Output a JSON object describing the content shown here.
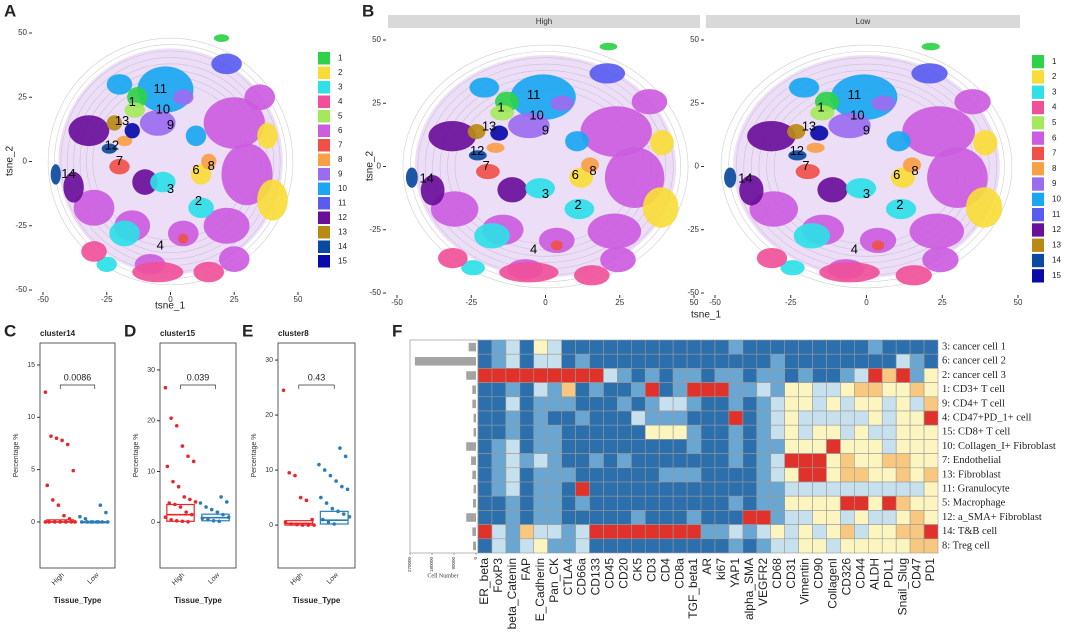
{
  "panels": [
    "A",
    "B",
    "C",
    "D",
    "E",
    "F"
  ],
  "tsne": {
    "xlabel": "tsne_1",
    "ylabel": "tsne_2",
    "xlim": [
      -50,
      50
    ],
    "ylim": [
      -50,
      50
    ],
    "xticks": [
      -50,
      -25,
      0,
      25,
      50
    ],
    "yticks": [
      -50,
      -25,
      0,
      25,
      50
    ],
    "facets": [
      "High",
      "Low"
    ],
    "clusters": [
      {
        "label": "1",
        "color": "#2ed14a"
      },
      {
        "label": "2",
        "color": "#f9dc3a"
      },
      {
        "label": "3",
        "color": "#2ee0e8"
      },
      {
        "label": "4",
        "color": "#f0509a"
      },
      {
        "label": "5",
        "color": "#a6e85c"
      },
      {
        "label": "6",
        "color": "#cc5ce0"
      },
      {
        "label": "7",
        "color": "#f0504a"
      },
      {
        "label": "8",
        "color": "#f7a046"
      },
      {
        "label": "9",
        "color": "#9b6cf0"
      },
      {
        "label": "10",
        "color": "#1aa6f0"
      },
      {
        "label": "11",
        "color": "#5a5cf0"
      },
      {
        "label": "12",
        "color": "#6a0f9a"
      },
      {
        "label": "13",
        "color": "#b88a14"
      },
      {
        "label": "14",
        "color": "#0a4aa0"
      },
      {
        "label": "15",
        "color": "#0a0aa8"
      }
    ]
  },
  "boxplots": [
    {
      "title": "cluster14",
      "pvalue": "0.0086",
      "ylabel": "Percentage %",
      "xlabel": "Tissue_Type",
      "categories": [
        "High",
        "Low"
      ],
      "colors": [
        "#e8262a",
        "#2a7db8"
      ],
      "ylim": [
        -4.4,
        17.1
      ],
      "yticks": [
        0,
        5,
        10,
        15
      ],
      "groups": [
        {
          "q1": 0,
          "median": 0,
          "q3": 0.2,
          "points": [
            12.4,
            8.2,
            8,
            7.8,
            7.4,
            4.9,
            3.5,
            2.1,
            1.6,
            0.6,
            0.3,
            0,
            0,
            0,
            0,
            0,
            0,
            0
          ]
        },
        {
          "q1": 0,
          "median": 0,
          "q3": 0,
          "points": [
            1.6,
            0.9,
            0.5,
            0.3,
            0,
            0,
            0,
            0,
            0,
            0,
            0,
            0
          ]
        }
      ]
    },
    {
      "title": "cluster15",
      "pvalue": "0.039",
      "ylabel": "Percentage %",
      "xlabel": "Tissue_Type",
      "categories": [
        "High",
        "Low"
      ],
      "colors": [
        "#e8262a",
        "#2a7db8"
      ],
      "ylim": [
        -9,
        35.3
      ],
      "yticks": [
        0,
        10,
        20,
        30
      ],
      "groups": [
        {
          "q1": 0.2,
          "median": 1.5,
          "q3": 3.5,
          "points": [
            26.5,
            20.5,
            19,
            15,
            13,
            12,
            11,
            8,
            7,
            5,
            4.5,
            4,
            3.8,
            3.5,
            3,
            2,
            1.5,
            1,
            0.5,
            0.3,
            0.2,
            0.1
          ]
        },
        {
          "q1": 0.3,
          "median": 0.9,
          "q3": 1.6,
          "points": [
            5,
            4,
            3.8,
            3,
            2.5,
            2,
            1.5,
            1,
            0.8,
            0.5,
            0.3,
            0.2
          ]
        }
      ]
    },
    {
      "title": "cluster8",
      "pvalue": "0.43",
      "ylabel": "Percentage %",
      "xlabel": "Tissue_Type",
      "categories": [
        "High",
        "Low"
      ],
      "colors": [
        "#e8262a",
        "#2a7db8"
      ],
      "ylim": [
        -7.8,
        33.1
      ],
      "yticks": [
        0,
        10,
        20,
        30
      ],
      "groups": [
        {
          "q1": 0,
          "median": 0.3,
          "q3": 0.8,
          "points": [
            24.5,
            9.5,
            9,
            5,
            4.5,
            1,
            0.5,
            0.2,
            0.1,
            0,
            0,
            0
          ]
        },
        {
          "q1": 0.2,
          "median": 0.9,
          "q3": 2.5,
          "points": [
            14,
            12.5,
            11,
            10,
            9,
            8,
            7,
            6.5,
            5,
            4,
            3,
            2.5,
            2,
            1.5,
            1,
            0.5,
            0.2
          ]
        }
      ]
    }
  ],
  "heatmap": {
    "rows": [
      "3: cancer cell 1",
      "6: cancer cell 2",
      "2: cancer cell 3",
      "1: CD3+ T cell",
      "9: CD4+ T cell",
      "4: CD47+PD_1+ cell",
      "15: CD8+ T cell",
      "10: Collagen_I+ Fibroblast",
      "7:  Endothelial",
      "13: Fibroblast",
      "11: Granulocyte",
      "5: Macrophage",
      "12: a_SMA+ Fibroblast",
      "14: T&B cell",
      "8: Treg cell"
    ],
    "columns": [
      "ER_beta",
      "FoxP3",
      "beta_Catenin",
      "FAP",
      "E_Cadherin",
      "Pan_CK",
      "CTLA4",
      "CD66a",
      "CD133",
      "CD45",
      "CD20",
      "CK5",
      "CD3",
      "CD4",
      "CD8a",
      "TGF_beta1",
      "AR",
      "ki67",
      "YAP1",
      "alpha_SMA",
      "VEGFR2",
      "CD68",
      "CD31",
      "Vimentin",
      "CD90",
      "CollagenI",
      "CD326",
      "CD44",
      "ALDH",
      "PDL1",
      "Snail_Slug",
      "CD47",
      "PD1"
    ],
    "color_scale": [
      "#2c6fad",
      "#6aa6d2",
      "#c6e0ee",
      "#fdf5c0",
      "#f8c880",
      "#e0312a"
    ],
    "levels": [
      [
        0,
        1,
        2,
        0,
        3,
        2,
        0,
        0,
        0,
        0,
        0,
        0,
        0,
        0,
        0,
        0,
        0,
        0,
        1,
        0,
        0,
        0,
        0,
        0,
        0,
        0,
        0,
        0,
        1,
        0,
        0,
        0,
        0
      ],
      [
        0,
        1,
        2,
        0,
        2,
        2,
        0,
        1,
        0,
        0,
        0,
        0,
        0,
        0,
        0,
        0,
        0,
        0,
        0,
        0,
        0,
        1,
        0,
        0,
        0,
        0,
        0,
        0,
        0,
        0,
        2,
        1,
        0
      ],
      [
        5,
        5,
        5,
        5,
        5,
        5,
        5,
        5,
        5,
        2,
        1,
        0,
        1,
        0,
        1,
        1,
        0,
        1,
        1,
        0,
        1,
        1,
        0,
        1,
        0,
        0,
        1,
        2,
        5,
        4,
        5,
        1,
        3
      ],
      [
        0,
        0,
        1,
        0,
        2,
        1,
        4,
        0,
        1,
        0,
        0,
        1,
        5,
        0,
        1,
        5,
        5,
        5,
        1,
        1,
        2,
        1,
        3,
        3,
        2,
        2,
        3,
        4,
        4,
        3,
        3,
        4,
        3
      ],
      [
        0,
        0,
        2,
        0,
        1,
        1,
        1,
        0,
        0,
        0,
        1,
        0,
        1,
        2,
        2,
        1,
        0,
        0,
        1,
        0,
        1,
        2,
        3,
        3,
        2,
        3,
        2,
        3,
        3,
        2,
        3,
        2,
        4
      ],
      [
        0,
        0,
        1,
        0,
        1,
        0,
        0,
        1,
        0,
        0,
        0,
        2,
        1,
        1,
        1,
        0,
        0,
        0,
        5,
        0,
        1,
        2,
        3,
        2,
        2,
        2,
        2,
        2,
        3,
        2,
        3,
        3,
        5
      ],
      [
        0,
        0,
        1,
        0,
        1,
        1,
        0,
        0,
        0,
        0,
        0,
        0,
        3,
        3,
        3,
        1,
        0,
        0,
        1,
        0,
        1,
        2,
        3,
        2,
        3,
        3,
        2,
        3,
        2,
        2,
        3,
        3,
        3
      ],
      [
        0,
        1,
        2,
        0,
        1,
        1,
        0,
        0,
        0,
        0,
        0,
        0,
        0,
        0,
        0,
        1,
        0,
        0,
        1,
        0,
        1,
        1,
        3,
        3,
        3,
        5,
        3,
        3,
        3,
        2,
        3,
        3,
        3
      ],
      [
        0,
        1,
        2,
        1,
        2,
        1,
        0,
        0,
        1,
        0,
        1,
        0,
        0,
        0,
        0,
        0,
        0,
        0,
        1,
        0,
        1,
        2,
        5,
        5,
        5,
        3,
        4,
        3,
        3,
        4,
        4,
        3,
        3
      ],
      [
        0,
        1,
        2,
        0,
        1,
        1,
        1,
        0,
        0,
        0,
        0,
        0,
        0,
        1,
        1,
        1,
        0,
        0,
        0,
        0,
        1,
        2,
        3,
        5,
        5,
        3,
        4,
        4,
        3,
        3,
        4,
        3,
        4
      ],
      [
        0,
        1,
        2,
        0,
        1,
        1,
        0,
        5,
        0,
        0,
        0,
        0,
        0,
        0,
        0,
        0,
        0,
        0,
        0,
        0,
        1,
        1,
        2,
        2,
        2,
        2,
        2,
        2,
        2,
        2,
        2,
        2,
        3
      ],
      [
        0,
        0,
        1,
        0,
        1,
        1,
        0,
        1,
        0,
        0,
        0,
        0,
        0,
        0,
        0,
        0,
        0,
        0,
        1,
        0,
        1,
        1,
        3,
        3,
        3,
        3,
        5,
        5,
        3,
        5,
        4,
        3,
        3
      ],
      [
        0,
        0,
        1,
        0,
        1,
        1,
        0,
        0,
        0,
        0,
        0,
        1,
        0,
        0,
        0,
        1,
        0,
        0,
        0,
        5,
        5,
        1,
        2,
        2,
        3,
        3,
        2,
        3,
        2,
        2,
        3,
        4,
        3
      ],
      [
        5,
        2,
        1,
        4,
        2,
        2,
        1,
        2,
        5,
        5,
        5,
        5,
        5,
        5,
        5,
        5,
        1,
        1,
        2,
        1,
        2,
        3,
        2,
        3,
        2,
        3,
        4,
        2,
        3,
        3,
        4,
        4,
        5
      ],
      [
        0,
        2,
        1,
        2,
        3,
        1,
        1,
        2,
        0,
        0,
        0,
        0,
        0,
        0,
        0,
        0,
        0,
        0,
        1,
        0,
        1,
        2,
        2,
        3,
        3,
        2,
        3,
        3,
        3,
        3,
        3,
        4,
        4
      ]
    ],
    "cell_number_label": "Cell Number",
    "cell_numbers": [
      30000,
      250000,
      40000,
      15000,
      15000,
      10000,
      10000,
      40000,
      20000,
      15000,
      10000,
      12000,
      40000,
      15000,
      12000
    ],
    "cell_xlim": [
      0,
      270000
    ],
    "cell_ticks": [
      0,
      90000,
      180000,
      270000
    ]
  }
}
